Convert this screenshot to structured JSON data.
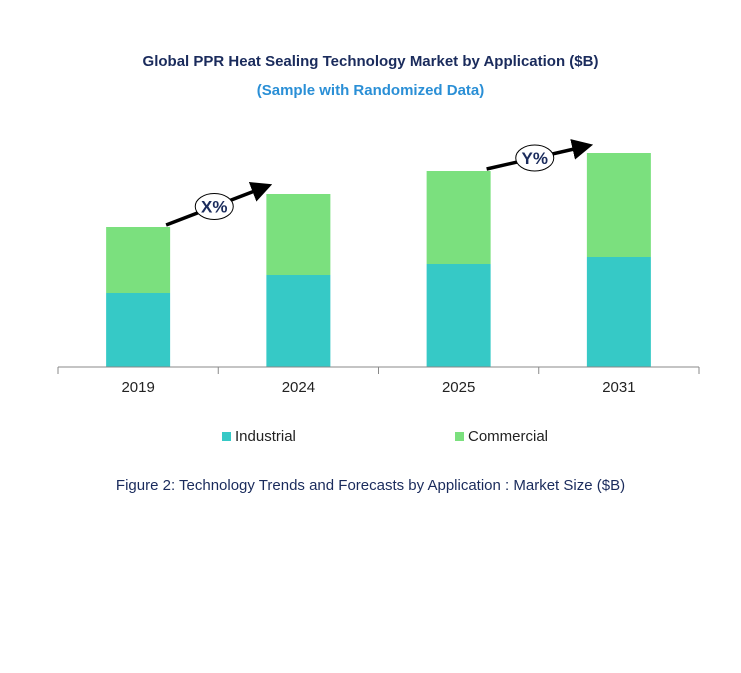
{
  "chart_data": {
    "type": "bar",
    "stacked": true,
    "title": "Global PPR Heat Sealing Technology Market by Application ($B)",
    "subtitle": "(Sample with Randomized Data)",
    "caption": "Figure 2: Technology  Trends  and Forecasts by Application : Market Size ($B)",
    "categories": [
      "2019",
      "2024",
      "2025",
      "2031"
    ],
    "series": [
      {
        "name": "Industrial",
        "color": "#36c9c6",
        "values": [
          7.4,
          9.2,
          10.3,
          11.0
        ]
      },
      {
        "name": "Commercial",
        "color": "#7be07e",
        "values": [
          6.6,
          8.1,
          9.3,
          10.4
        ]
      }
    ],
    "ylim": [
      0,
      21.4
    ],
    "y_axis_shown": false,
    "grid": false,
    "legend": "bottom",
    "annotations": [
      {
        "text": "X%",
        "from": "2019",
        "to": "2024"
      },
      {
        "text": "Y%",
        "from": "2025",
        "to": "2031"
      }
    ]
  }
}
